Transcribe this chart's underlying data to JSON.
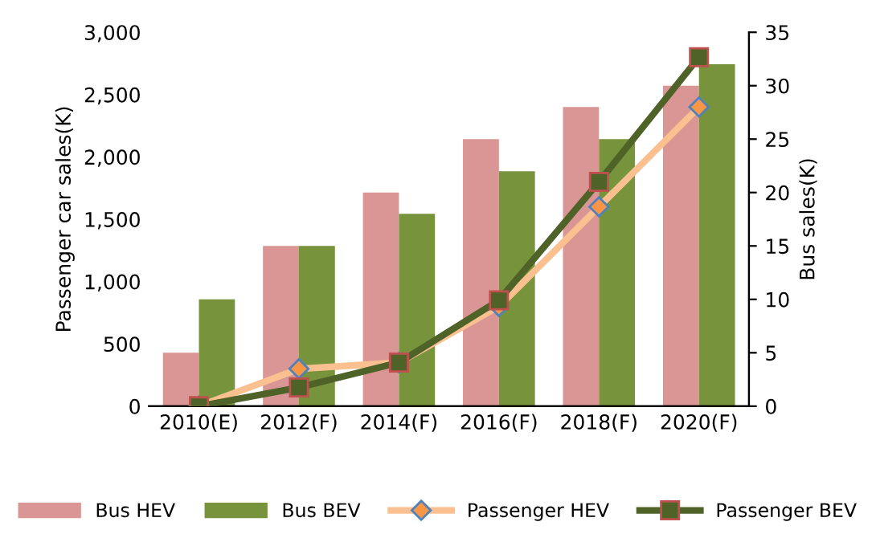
{
  "chart_data": {
    "type": "bar",
    "ylabel": "Passenger car sales(K)",
    "y2label": "Bus sales(K)",
    "categories": [
      "2010(E)",
      "2012(F)",
      "2014(F)",
      "2016(F)",
      "2018(F)",
      "2020(F)"
    ],
    "series": [
      {
        "name": "Bus HEV",
        "axis": "y2",
        "color": "#d99694",
        "values": [
          5,
          15,
          20,
          25,
          28,
          30
        ]
      },
      {
        "name": "Bus BEV",
        "axis": "y2",
        "color": "#77933c",
        "values": [
          10,
          15,
          18,
          22,
          25,
          32
        ]
      },
      {
        "name": "Passenger HEV",
        "type": "line",
        "axis": "y",
        "color": "#fac090",
        "marker": "diamond",
        "values": [
          0,
          300,
          350,
          800,
          1600,
          2400
        ]
      },
      {
        "name": "Passenger BEV",
        "type": "line",
        "axis": "y",
        "color": "#4f6228",
        "marker": "square",
        "values": [
          0,
          150,
          350,
          850,
          1800,
          2800
        ]
      }
    ],
    "ylim": [
      0,
      3000
    ],
    "yticks": [
      0,
      500,
      {
        "value": 1000,
        "label": "1,000"
      },
      {
        "value": 1500,
        "label": "1,500"
      },
      {
        "value": 2000,
        "label": "2,000"
      },
      {
        "value": 2500,
        "label": "2,500"
      },
      {
        "value": 3000,
        "label": "3,000"
      }
    ],
    "y2lim": [
      0,
      35
    ],
    "y2ticks": [
      0,
      5,
      10,
      15,
      20,
      25,
      30,
      35
    ],
    "legend": "bottom",
    "grid": false
  }
}
